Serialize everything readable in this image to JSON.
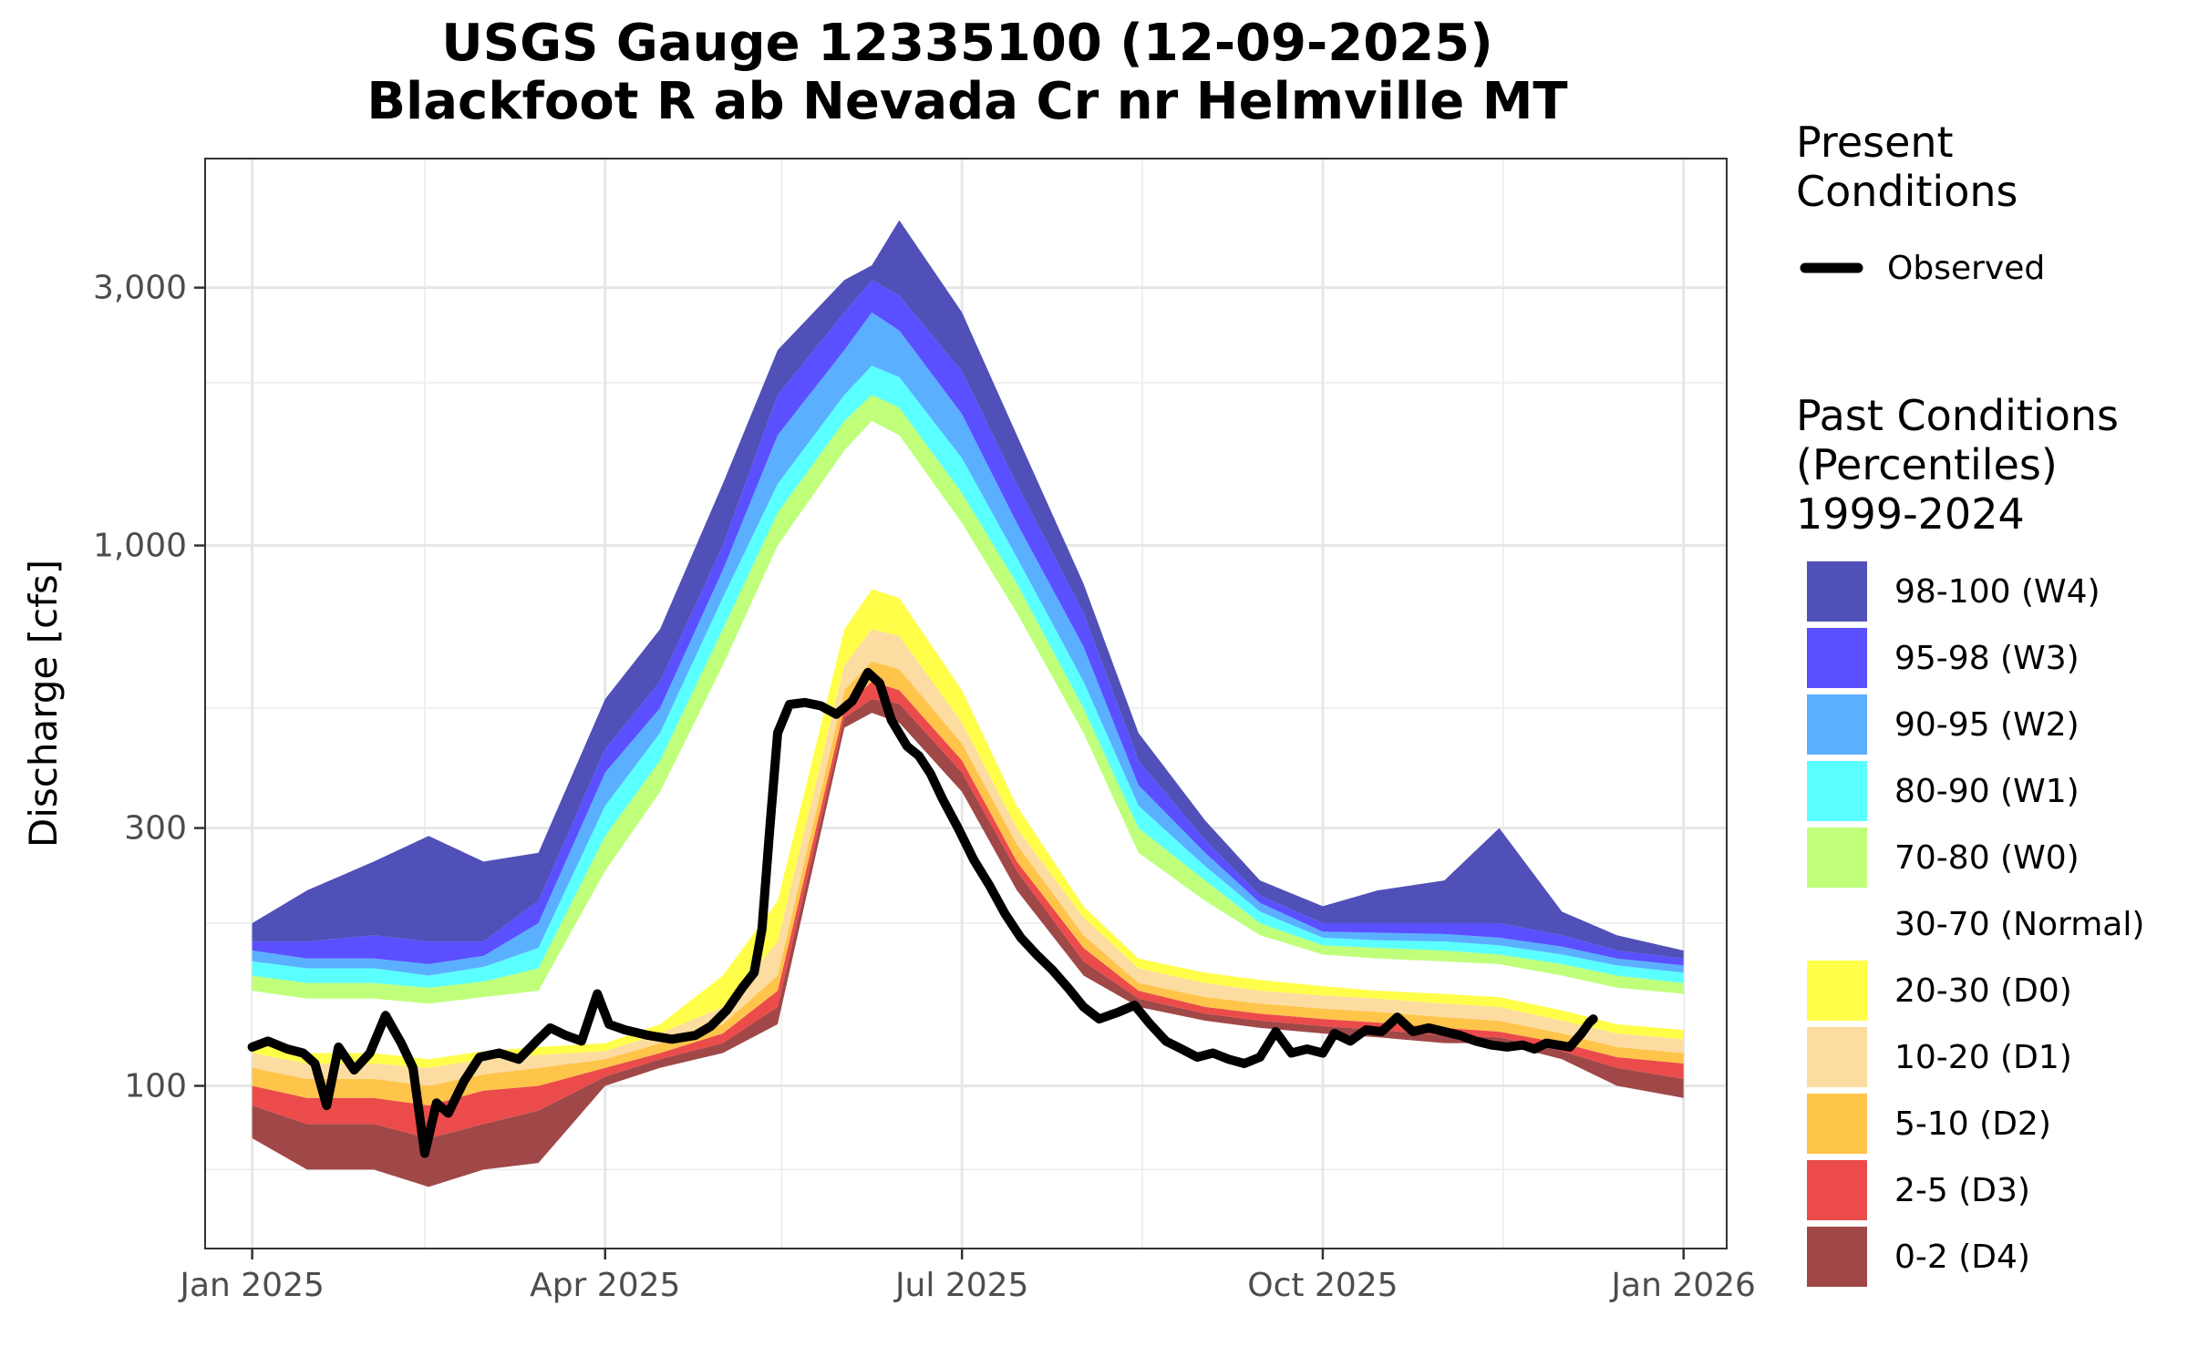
{
  "chart_data": {
    "type": "area",
    "title_line1": "USGS Gauge 12335100 (12-09-2025)",
    "title_line2": "Blackfoot R ab Nevada Cr nr Helmville MT",
    "ylabel": "Discharge [cfs]",
    "xlabel": "",
    "y_scale": "log",
    "ylim": [
      50,
      5200
    ],
    "xlim": [
      "2024-12-20",
      "2026-01-12"
    ],
    "grid": true,
    "legend_position": "right",
    "x_ticks": [
      {
        "date": "2025-01-01",
        "label": "Jan 2025"
      },
      {
        "date": "2025-04-01",
        "label": "Apr 2025"
      },
      {
        "date": "2025-07-01",
        "label": "Jul 2025"
      },
      {
        "date": "2025-10-01",
        "label": "Oct 2025"
      },
      {
        "date": "2026-01-01",
        "label": "Jan 2026"
      }
    ],
    "y_ticks": [
      {
        "value": 100,
        "label": "100"
      },
      {
        "value": 300,
        "label": "300"
      },
      {
        "value": 1000,
        "label": "1,000"
      },
      {
        "value": 3000,
        "label": "3,000"
      }
    ],
    "legend_present_title": [
      "Present",
      "Conditions"
    ],
    "legend_present_item": {
      "label": "Observed",
      "color": "#000000"
    },
    "legend_past_title": [
      "Past Conditions",
      "(Percentiles)",
      "1999-2024"
    ],
    "legend_past_items": [
      {
        "label": "98-100 (W4)",
        "color": "#5050b8"
      },
      {
        "label": "95-98 (W3)",
        "color": "#5a50ff"
      },
      {
        "label": "90-95 (W2)",
        "color": "#5ab0ff"
      },
      {
        "label": "80-90 (W1)",
        "color": "#5affff"
      },
      {
        "label": "70-80 (W0)",
        "color": "#bfff7a"
      },
      {
        "label": "30-70 (Normal)",
        "color": "#ffffff"
      },
      {
        "label": "20-30 (D0)",
        "color": "#ffff4a"
      },
      {
        "label": "10-20 (D1)",
        "color": "#fcdca0"
      },
      {
        "label": "5-10 (D2)",
        "color": "#ffc44a"
      },
      {
        "label": "2-5 (D3)",
        "color": "#ec4b4b"
      },
      {
        "label": "0-2 (D4)",
        "color": "#a04848"
      }
    ],
    "percentile_bands": {
      "dates": [
        "2025-01-01",
        "2025-01-15",
        "2025-02-01",
        "2025-02-15",
        "2025-03-01",
        "2025-03-15",
        "2025-04-01",
        "2025-04-15",
        "2025-05-01",
        "2025-05-15",
        "2025-06-01",
        "2025-06-08",
        "2025-06-15",
        "2025-07-01",
        "2025-07-15",
        "2025-08-01",
        "2025-08-15",
        "2025-09-01",
        "2025-09-15",
        "2025-10-01",
        "2025-10-15",
        "2025-11-01",
        "2025-11-15",
        "2025-12-01",
        "2025-12-15",
        "2026-01-01"
      ],
      "p0": [
        80,
        70,
        70,
        65,
        70,
        72,
        100,
        108,
        115,
        130,
        460,
        490,
        470,
        350,
        230,
        160,
        140,
        132,
        128,
        125,
        123,
        120,
        120,
        112,
        100,
        95
      ],
      "p2": [
        92,
        85,
        85,
        80,
        85,
        90,
        104,
        112,
        120,
        140,
        480,
        520,
        510,
        380,
        250,
        170,
        145,
        136,
        132,
        129,
        127,
        124,
        123,
        116,
        108,
        103
      ],
      "p5": [
        100,
        95,
        95,
        92,
        98,
        100,
        108,
        115,
        125,
        150,
        500,
        560,
        540,
        400,
        260,
        180,
        150,
        140,
        136,
        133,
        131,
        128,
        126,
        120,
        113,
        110
      ],
      "p10": [
        108,
        103,
        103,
        100,
        105,
        108,
        112,
        120,
        130,
        160,
        540,
        610,
        590,
        430,
        280,
        190,
        155,
        146,
        142,
        139,
        137,
        134,
        132,
        125,
        118,
        115
      ],
      "p20": [
        115,
        110,
        110,
        108,
        112,
        114,
        116,
        125,
        140,
        185,
        600,
        700,
        680,
        470,
        300,
        205,
        165,
        155,
        150,
        147,
        145,
        142,
        140,
        132,
        125,
        122
      ],
      "p30": [
        120,
        115,
        115,
        112,
        116,
        118,
        120,
        130,
        160,
        220,
        700,
        830,
        800,
        540,
        330,
        215,
        172,
        162,
        157,
        153,
        150,
        148,
        146,
        138,
        130,
        127
      ],
      "p70": [
        150,
        145,
        145,
        142,
        146,
        150,
        250,
        350,
        600,
        1000,
        1500,
        1700,
        1600,
        1100,
        750,
        450,
        270,
        220,
        190,
        175,
        172,
        170,
        168,
        160,
        152,
        148
      ],
      "p80": [
        160,
        155,
        155,
        152,
        156,
        165,
        290,
        400,
        700,
        1150,
        1700,
        1900,
        1800,
        1250,
        850,
        500,
        300,
        240,
        200,
        182,
        180,
        178,
        175,
        168,
        160,
        155
      ],
      "p90": [
        170,
        165,
        165,
        160,
        166,
        180,
        330,
        450,
        800,
        1300,
        1900,
        2150,
        2050,
        1450,
        950,
        560,
        330,
        255,
        210,
        188,
        186,
        185,
        182,
        175,
        167,
        162
      ],
      "p95": [
        178,
        172,
        172,
        168,
        174,
        200,
        380,
        500,
        900,
        1600,
        2300,
        2700,
        2500,
        1750,
        1100,
        650,
        360,
        270,
        218,
        193,
        192,
        191,
        188,
        181,
        172,
        167
      ],
      "p98": [
        185,
        185,
        190,
        185,
        185,
        220,
        420,
        560,
        1000,
        1900,
        2700,
        3100,
        2900,
        2100,
        1300,
        750,
        400,
        285,
        225,
        200,
        200,
        200,
        200,
        190,
        178,
        172
      ],
      "p100": [
        200,
        230,
        260,
        290,
        260,
        270,
        520,
        700,
        1300,
        2300,
        3100,
        3300,
        4000,
        2700,
        1600,
        850,
        450,
        310,
        240,
        215,
        230,
        240,
        300,
        210,
        190,
        178
      ]
    },
    "series": [
      {
        "name": "Observed",
        "color": "#000000",
        "points": [
          [
            "2025-01-01",
            118
          ],
          [
            "2025-01-05",
            121
          ],
          [
            "2025-01-10",
            117
          ],
          [
            "2025-01-14",
            115
          ],
          [
            "2025-01-17",
            110
          ],
          [
            "2025-01-20",
            92
          ],
          [
            "2025-01-23",
            118
          ],
          [
            "2025-01-27",
            107
          ],
          [
            "2025-01-31",
            115
          ],
          [
            "2025-02-04",
            135
          ],
          [
            "2025-02-08",
            120
          ],
          [
            "2025-02-11",
            108
          ],
          [
            "2025-02-14",
            75
          ],
          [
            "2025-02-17",
            93
          ],
          [
            "2025-02-20",
            89
          ],
          [
            "2025-02-24",
            102
          ],
          [
            "2025-02-28",
            113
          ],
          [
            "2025-03-05",
            115
          ],
          [
            "2025-03-10",
            112
          ],
          [
            "2025-03-15",
            122
          ],
          [
            "2025-03-18",
            128
          ],
          [
            "2025-03-22",
            124
          ],
          [
            "2025-03-26",
            121
          ],
          [
            "2025-03-30",
            148
          ],
          [
            "2025-04-02",
            130
          ],
          [
            "2025-04-06",
            127
          ],
          [
            "2025-04-12",
            124
          ],
          [
            "2025-04-18",
            122
          ],
          [
            "2025-04-24",
            124
          ],
          [
            "2025-04-28",
            129
          ],
          [
            "2025-05-02",
            138
          ],
          [
            "2025-05-06",
            152
          ],
          [
            "2025-05-09",
            162
          ],
          [
            "2025-05-11",
            195
          ],
          [
            "2025-05-13",
            300
          ],
          [
            "2025-05-15",
            450
          ],
          [
            "2025-05-18",
            508
          ],
          [
            "2025-05-22",
            512
          ],
          [
            "2025-05-26",
            505
          ],
          [
            "2025-05-30",
            487
          ],
          [
            "2025-06-03",
            515
          ],
          [
            "2025-06-07",
            582
          ],
          [
            "2025-06-10",
            556
          ],
          [
            "2025-06-13",
            475
          ],
          [
            "2025-06-17",
            425
          ],
          [
            "2025-06-20",
            408
          ],
          [
            "2025-06-23",
            378
          ],
          [
            "2025-06-26",
            340
          ],
          [
            "2025-06-30",
            300
          ],
          [
            "2025-07-04",
            262
          ],
          [
            "2025-07-08",
            235
          ],
          [
            "2025-07-12",
            208
          ],
          [
            "2025-07-16",
            188
          ],
          [
            "2025-07-20",
            175
          ],
          [
            "2025-07-24",
            164
          ],
          [
            "2025-07-28",
            152
          ],
          [
            "2025-08-01",
            140
          ],
          [
            "2025-08-05",
            133
          ],
          [
            "2025-08-10",
            137
          ],
          [
            "2025-08-14",
            141
          ],
          [
            "2025-08-18",
            130
          ],
          [
            "2025-08-22",
            121
          ],
          [
            "2025-08-26",
            117
          ],
          [
            "2025-08-30",
            113
          ],
          [
            "2025-09-03",
            115
          ],
          [
            "2025-09-07",
            112
          ],
          [
            "2025-09-11",
            110
          ],
          [
            "2025-09-15",
            113
          ],
          [
            "2025-09-19",
            126
          ],
          [
            "2025-09-23",
            115
          ],
          [
            "2025-09-27",
            117
          ],
          [
            "2025-10-01",
            115
          ],
          [
            "2025-10-04",
            125
          ],
          [
            "2025-10-08",
            121
          ],
          [
            "2025-10-12",
            127
          ],
          [
            "2025-10-16",
            126
          ],
          [
            "2025-10-20",
            134
          ],
          [
            "2025-10-24",
            126
          ],
          [
            "2025-10-28",
            128
          ],
          [
            "2025-11-01",
            126
          ],
          [
            "2025-11-05",
            124
          ],
          [
            "2025-11-09",
            121
          ],
          [
            "2025-11-13",
            119
          ],
          [
            "2025-11-17",
            118
          ],
          [
            "2025-11-21",
            119
          ],
          [
            "2025-11-24",
            117
          ],
          [
            "2025-11-27",
            120
          ],
          [
            "2025-12-03",
            118
          ],
          [
            "2025-12-06",
            125
          ],
          [
            "2025-12-08",
            131
          ],
          [
            "2025-12-09",
            133
          ]
        ]
      }
    ]
  }
}
